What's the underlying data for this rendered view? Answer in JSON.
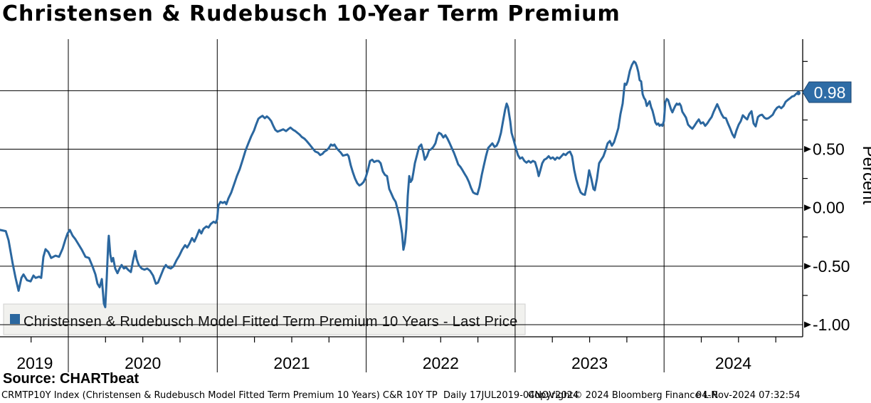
{
  "title": "Christensen & Rudebusch 10-Year Term Premium",
  "source_line": "Source: CHARTbeat",
  "footer": {
    "description": "CRMTP10Y Index (Christensen & Rudebusch Model Fitted Term Premium 10 Years) C&R 10Y TP  Daily 17JUL2019-04NOV2024",
    "copyright": "Copyright© 2024 Bloomberg Finance L.P.",
    "timestamp": "04-Nov-2024 07:32:54"
  },
  "legend": {
    "label": "Christensen & Rudebusch Model Fitted Term Premium 10 Years - Last Price",
    "swatch_color": "#2b679f"
  },
  "last_price_badge": {
    "value": "0.98",
    "fill": "#2e6ca6",
    "border": "#1b4570",
    "text_color": "#ffffff"
  },
  "axes": {
    "y": {
      "label": "Percent",
      "gridline_values": [
        1.0,
        0.5,
        0.0,
        -0.5,
        -1.0
      ],
      "ticks": [
        {
          "v": 0.5,
          "label": "0.50"
        },
        {
          "v": 0.0,
          "label": "0.00"
        },
        {
          "v": -0.5,
          "label": "-0.50"
        },
        {
          "v": -1.0,
          "label": "-1.00"
        }
      ],
      "minor_ticks": [
        1.25,
        0.75,
        0.25,
        -0.25,
        -0.75
      ]
    },
    "x": {
      "labels": [
        "2019",
        "2020",
        "2021",
        "2022",
        "2023",
        "2024"
      ],
      "year_lines": [
        2020,
        2021,
        2022,
        2023,
        2024
      ],
      "minor_step": 0.25
    }
  },
  "chart_data": {
    "type": "line",
    "title": "Christensen & Rudebusch 10-Year Term Premium",
    "xlabel": "",
    "ylabel": "Percent",
    "series_name": "Christensen & Rudebusch Model Fitted Term Premium 10 Years - Last Price",
    "line_color": "#2b679f",
    "x_unit": "decimal_year",
    "x_range": [
      2019.55,
      2024.93
    ],
    "y_range": [
      -1.11,
      1.44
    ],
    "last_value": 0.98,
    "points": [
      [
        2019.541,
        -0.19
      ],
      [
        2019.58,
        -0.2
      ],
      [
        2019.599,
        -0.28
      ],
      [
        2019.627,
        -0.48
      ],
      [
        2019.646,
        -0.6
      ],
      [
        2019.666,
        -0.71
      ],
      [
        2019.685,
        -0.6
      ],
      [
        2019.699,
        -0.57
      ],
      [
        2019.723,
        -0.62
      ],
      [
        2019.747,
        -0.63
      ],
      [
        2019.766,
        -0.58
      ],
      [
        2019.78,
        -0.6
      ],
      [
        2019.804,
        -0.59
      ],
      [
        2019.818,
        -0.6
      ],
      [
        2019.833,
        -0.42
      ],
      [
        2019.847,
        -0.355
      ],
      [
        2019.866,
        -0.38
      ],
      [
        2019.885,
        -0.43
      ],
      [
        2019.914,
        -0.41
      ],
      [
        2019.938,
        -0.42
      ],
      [
        2019.962,
        -0.35
      ],
      [
        2019.981,
        -0.27
      ],
      [
        2019.995,
        -0.22
      ],
      [
        2020.01,
        -0.19
      ],
      [
        2020.029,
        -0.24
      ],
      [
        2020.048,
        -0.27
      ],
      [
        2020.067,
        -0.31
      ],
      [
        2020.091,
        -0.36
      ],
      [
        2020.115,
        -0.42
      ],
      [
        2020.139,
        -0.43
      ],
      [
        2020.162,
        -0.5
      ],
      [
        2020.182,
        -0.57
      ],
      [
        2020.196,
        -0.65
      ],
      [
        2020.21,
        -0.68
      ],
      [
        2020.225,
        -0.61
      ],
      [
        2020.239,
        -0.82
      ],
      [
        2020.248,
        -0.85
      ],
      [
        2020.258,
        -0.6
      ],
      [
        2020.268,
        -0.3
      ],
      [
        2020.272,
        -0.24
      ],
      [
        2020.282,
        -0.4
      ],
      [
        2020.291,
        -0.46
      ],
      [
        2020.301,
        -0.43
      ],
      [
        2020.315,
        -0.52
      ],
      [
        2020.33,
        -0.56
      ],
      [
        2020.344,
        -0.52
      ],
      [
        2020.358,
        -0.49
      ],
      [
        2020.373,
        -0.52
      ],
      [
        2020.387,
        -0.51
      ],
      [
        2020.401,
        -0.53
      ],
      [
        2020.42,
        -0.55
      ],
      [
        2020.435,
        -0.45
      ],
      [
        2020.449,
        -0.37
      ],
      [
        2020.459,
        -0.44
      ],
      [
        2020.473,
        -0.49
      ],
      [
        2020.492,
        -0.52
      ],
      [
        2020.511,
        -0.53
      ],
      [
        2020.53,
        -0.52
      ],
      [
        2020.549,
        -0.54
      ],
      [
        2020.569,
        -0.58
      ],
      [
        2020.588,
        -0.65
      ],
      [
        2020.602,
        -0.64
      ],
      [
        2020.621,
        -0.58
      ],
      [
        2020.64,
        -0.52
      ],
      [
        2020.655,
        -0.49
      ],
      [
        2020.669,
        -0.51
      ],
      [
        2020.688,
        -0.52
      ],
      [
        2020.707,
        -0.5
      ],
      [
        2020.726,
        -0.45
      ],
      [
        2020.745,
        -0.41
      ],
      [
        2020.764,
        -0.36
      ],
      [
        2020.784,
        -0.32
      ],
      [
        2020.798,
        -0.34
      ],
      [
        2020.812,
        -0.31
      ],
      [
        2020.831,
        -0.26
      ],
      [
        2020.846,
        -0.29
      ],
      [
        2020.86,
        -0.25
      ],
      [
        2020.879,
        -0.19
      ],
      [
        2020.893,
        -0.22
      ],
      [
        2020.908,
        -0.18
      ],
      [
        2020.927,
        -0.16
      ],
      [
        2020.941,
        -0.17
      ],
      [
        2020.956,
        -0.14
      ],
      [
        2020.975,
        -0.12
      ],
      [
        2020.989,
        -0.13
      ],
      [
        2020.999,
        -0.1
      ],
      [
        2021.008,
        0.02
      ],
      [
        2021.022,
        0.05
      ],
      [
        2021.037,
        0.04
      ],
      [
        2021.051,
        0.05
      ],
      [
        2021.061,
        0.03
      ],
      [
        2021.075,
        0.08
      ],
      [
        2021.094,
        0.13
      ],
      [
        2021.113,
        0.2
      ],
      [
        2021.132,
        0.27
      ],
      [
        2021.151,
        0.33
      ],
      [
        2021.171,
        0.41
      ],
      [
        2021.19,
        0.49
      ],
      [
        2021.209,
        0.55
      ],
      [
        2021.228,
        0.61
      ],
      [
        2021.247,
        0.66
      ],
      [
        2021.261,
        0.71
      ],
      [
        2021.276,
        0.76
      ],
      [
        2021.29,
        0.775
      ],
      [
        2021.304,
        0.785
      ],
      [
        2021.319,
        0.765
      ],
      [
        2021.333,
        0.78
      ],
      [
        2021.347,
        0.765
      ],
      [
        2021.362,
        0.74
      ],
      [
        2021.376,
        0.7
      ],
      [
        2021.39,
        0.665
      ],
      [
        2021.405,
        0.65
      ],
      [
        2021.424,
        0.66
      ],
      [
        2021.443,
        0.67
      ],
      [
        2021.462,
        0.655
      ],
      [
        2021.476,
        0.67
      ],
      [
        2021.491,
        0.685
      ],
      [
        2021.51,
        0.665
      ],
      [
        2021.524,
        0.655
      ],
      [
        2021.538,
        0.64
      ],
      [
        2021.553,
        0.625
      ],
      [
        2021.567,
        0.605
      ],
      [
        2021.586,
        0.59
      ],
      [
        2021.6,
        0.57
      ],
      [
        2021.62,
        0.54
      ],
      [
        2021.639,
        0.51
      ],
      [
        2021.658,
        0.48
      ],
      [
        2021.677,
        0.47
      ],
      [
        2021.691,
        0.45
      ],
      [
        2021.706,
        0.46
      ],
      [
        2021.72,
        0.48
      ],
      [
        2021.734,
        0.49
      ],
      [
        2021.749,
        0.51
      ],
      [
        2021.763,
        0.54
      ],
      [
        2021.777,
        0.53
      ],
      [
        2021.787,
        0.54
      ],
      [
        2021.801,
        0.51
      ],
      [
        2021.815,
        0.49
      ],
      [
        2021.83,
        0.47
      ],
      [
        2021.844,
        0.445
      ],
      [
        2021.858,
        0.45
      ],
      [
        2021.873,
        0.455
      ],
      [
        2021.882,
        0.44
      ],
      [
        2021.897,
        0.36
      ],
      [
        2021.911,
        0.3
      ],
      [
        2021.925,
        0.25
      ],
      [
        2021.94,
        0.21
      ],
      [
        2021.954,
        0.19
      ],
      [
        2021.968,
        0.2
      ],
      [
        2021.983,
        0.22
      ],
      [
        2021.997,
        0.26
      ],
      [
        2022.011,
        0.32
      ],
      [
        2022.026,
        0.4
      ],
      [
        2022.04,
        0.41
      ],
      [
        2022.054,
        0.39
      ],
      [
        2022.069,
        0.4
      ],
      [
        2022.083,
        0.4
      ],
      [
        2022.097,
        0.38
      ],
      [
        2022.112,
        0.31
      ],
      [
        2022.126,
        0.28
      ],
      [
        2022.14,
        0.27
      ],
      [
        2022.155,
        0.16
      ],
      [
        2022.169,
        0.12
      ],
      [
        2022.183,
        0.08
      ],
      [
        2022.198,
        0.05
      ],
      [
        2022.212,
        -0.02
      ],
      [
        2022.226,
        -0.1
      ],
      [
        2022.241,
        -0.22
      ],
      [
        2022.25,
        -0.36
      ],
      [
        2022.26,
        -0.3
      ],
      [
        2022.269,
        -0.18
      ],
      [
        2022.279,
        0.1
      ],
      [
        2022.289,
        0.27
      ],
      [
        2022.298,
        0.22
      ],
      [
        2022.308,
        0.24
      ],
      [
        2022.317,
        0.3
      ],
      [
        2022.327,
        0.38
      ],
      [
        2022.341,
        0.45
      ],
      [
        2022.355,
        0.52
      ],
      [
        2022.37,
        0.54
      ],
      [
        2022.384,
        0.47
      ],
      [
        2022.393,
        0.41
      ],
      [
        2022.408,
        0.44
      ],
      [
        2022.422,
        0.49
      ],
      [
        2022.436,
        0.5
      ],
      [
        2022.451,
        0.52
      ],
      [
        2022.465,
        0.55
      ],
      [
        2022.479,
        0.62
      ],
      [
        2022.489,
        0.64
      ],
      [
        2022.503,
        0.63
      ],
      [
        2022.518,
        0.6
      ],
      [
        2022.532,
        0.62
      ],
      [
        2022.546,
        0.59
      ],
      [
        2022.561,
        0.55
      ],
      [
        2022.575,
        0.51
      ],
      [
        2022.589,
        0.47
      ],
      [
        2022.604,
        0.42
      ],
      [
        2022.618,
        0.37
      ],
      [
        2022.632,
        0.35
      ],
      [
        2022.647,
        0.32
      ],
      [
        2022.661,
        0.29
      ],
      [
        2022.675,
        0.26
      ],
      [
        2022.69,
        0.22
      ],
      [
        2022.704,
        0.17
      ],
      [
        2022.718,
        0.13
      ],
      [
        2022.733,
        0.12
      ],
      [
        2022.747,
        0.115
      ],
      [
        2022.761,
        0.18
      ],
      [
        2022.776,
        0.28
      ],
      [
        2022.79,
        0.36
      ],
      [
        2022.804,
        0.44
      ],
      [
        2022.819,
        0.51
      ],
      [
        2022.833,
        0.53
      ],
      [
        2022.847,
        0.55
      ],
      [
        2022.862,
        0.52
      ],
      [
        2022.876,
        0.53
      ],
      [
        2022.89,
        0.57
      ],
      [
        2022.905,
        0.64
      ],
      [
        2022.919,
        0.74
      ],
      [
        2022.933,
        0.84
      ],
      [
        2022.943,
        0.89
      ],
      [
        2022.952,
        0.86
      ],
      [
        2022.967,
        0.74
      ],
      [
        2022.976,
        0.64
      ],
      [
        2022.99,
        0.58
      ],
      [
        2023.005,
        0.51
      ],
      [
        2023.019,
        0.45
      ],
      [
        2023.033,
        0.42
      ],
      [
        2023.048,
        0.43
      ],
      [
        2023.062,
        0.4
      ],
      [
        2023.076,
        0.385
      ],
      [
        2023.091,
        0.4
      ],
      [
        2023.105,
        0.385
      ],
      [
        2023.119,
        0.4
      ],
      [
        2023.134,
        0.39
      ],
      [
        2023.148,
        0.33
      ],
      [
        2023.158,
        0.27
      ],
      [
        2023.167,
        0.31
      ],
      [
        2023.182,
        0.38
      ],
      [
        2023.196,
        0.41
      ],
      [
        2023.21,
        0.42
      ],
      [
        2023.225,
        0.44
      ],
      [
        2023.239,
        0.42
      ],
      [
        2023.253,
        0.43
      ],
      [
        2023.268,
        0.41
      ],
      [
        2023.282,
        0.43
      ],
      [
        2023.296,
        0.42
      ],
      [
        2023.311,
        0.44
      ],
      [
        2023.325,
        0.46
      ],
      [
        2023.339,
        0.45
      ],
      [
        2023.354,
        0.47
      ],
      [
        2023.368,
        0.48
      ],
      [
        2023.382,
        0.44
      ],
      [
        2023.397,
        0.32
      ],
      [
        2023.411,
        0.24
      ],
      [
        2023.425,
        0.18
      ],
      [
        2023.44,
        0.13
      ],
      [
        2023.454,
        0.115
      ],
      [
        2023.468,
        0.11
      ],
      [
        2023.483,
        0.2
      ],
      [
        2023.497,
        0.32
      ],
      [
        2023.511,
        0.25
      ],
      [
        2023.526,
        0.16
      ],
      [
        2023.535,
        0.15
      ],
      [
        2023.55,
        0.25
      ],
      [
        2023.564,
        0.38
      ],
      [
        2023.578,
        0.41
      ],
      [
        2023.593,
        0.44
      ],
      [
        2023.607,
        0.49
      ],
      [
        2023.621,
        0.55
      ],
      [
        2023.636,
        0.57
      ],
      [
        2023.65,
        0.53
      ],
      [
        2023.664,
        0.56
      ],
      [
        2023.679,
        0.62
      ],
      [
        2023.693,
        0.68
      ],
      [
        2023.707,
        0.8
      ],
      [
        2023.722,
        0.89
      ],
      [
        2023.736,
        1.06
      ],
      [
        2023.746,
        1.05
      ],
      [
        2023.755,
        1.08
      ],
      [
        2023.77,
        1.17
      ],
      [
        2023.784,
        1.22
      ],
      [
        2023.798,
        1.25
      ],
      [
        2023.808,
        1.24
      ],
      [
        2023.817,
        1.21
      ],
      [
        2023.827,
        1.16
      ],
      [
        2023.836,
        1.09
      ],
      [
        2023.846,
        1.08
      ],
      [
        2023.856,
        0.97
      ],
      [
        2023.865,
        0.94
      ],
      [
        2023.875,
        0.92
      ],
      [
        2023.884,
        0.87
      ],
      [
        2023.894,
        0.89
      ],
      [
        2023.903,
        0.91
      ],
      [
        2023.913,
        0.86
      ],
      [
        2023.922,
        0.83
      ],
      [
        2023.932,
        0.78
      ],
      [
        2023.941,
        0.73
      ],
      [
        2023.951,
        0.71
      ],
      [
        2023.961,
        0.72
      ],
      [
        2023.97,
        0.7
      ],
      [
        2023.98,
        0.71
      ],
      [
        2023.989,
        0.7
      ],
      [
        2023.999,
        0.74
      ],
      [
        2024.008,
        0.9
      ],
      [
        2024.018,
        0.93
      ],
      [
        2024.027,
        0.92
      ],
      [
        2024.037,
        0.88
      ],
      [
        2024.047,
        0.84
      ],
      [
        2024.056,
        0.815
      ],
      [
        2024.066,
        0.845
      ],
      [
        2024.075,
        0.87
      ],
      [
        2024.085,
        0.89
      ],
      [
        2024.094,
        0.88
      ],
      [
        2024.104,
        0.89
      ],
      [
        2024.113,
        0.87
      ],
      [
        2024.123,
        0.82
      ],
      [
        2024.133,
        0.8
      ],
      [
        2024.147,
        0.77
      ],
      [
        2024.161,
        0.71
      ],
      [
        2024.176,
        0.69
      ],
      [
        2024.19,
        0.675
      ],
      [
        2024.204,
        0.7
      ],
      [
        2024.219,
        0.73
      ],
      [
        2024.233,
        0.755
      ],
      [
        2024.247,
        0.72
      ],
      [
        2024.262,
        0.73
      ],
      [
        2024.276,
        0.7
      ],
      [
        2024.29,
        0.72
      ],
      [
        2024.305,
        0.75
      ],
      [
        2024.319,
        0.775
      ],
      [
        2024.333,
        0.82
      ],
      [
        2024.348,
        0.86
      ],
      [
        2024.357,
        0.885
      ],
      [
        2024.372,
        0.84
      ],
      [
        2024.386,
        0.8
      ],
      [
        2024.4,
        0.77
      ],
      [
        2024.415,
        0.765
      ],
      [
        2024.429,
        0.72
      ],
      [
        2024.443,
        0.68
      ],
      [
        2024.458,
        0.63
      ],
      [
        2024.472,
        0.6
      ],
      [
        2024.486,
        0.66
      ],
      [
        2024.501,
        0.71
      ],
      [
        2024.515,
        0.74
      ],
      [
        2024.529,
        0.79
      ],
      [
        2024.544,
        0.77
      ],
      [
        2024.558,
        0.755
      ],
      [
        2024.572,
        0.8
      ],
      [
        2024.587,
        0.825
      ],
      [
        2024.601,
        0.72
      ],
      [
        2024.615,
        0.695
      ],
      [
        2024.63,
        0.775
      ],
      [
        2024.644,
        0.79
      ],
      [
        2024.658,
        0.795
      ],
      [
        2024.673,
        0.77
      ],
      [
        2024.687,
        0.76
      ],
      [
        2024.701,
        0.765
      ],
      [
        2024.716,
        0.78
      ],
      [
        2024.73,
        0.795
      ],
      [
        2024.744,
        0.83
      ],
      [
        2024.759,
        0.855
      ],
      [
        2024.773,
        0.865
      ],
      [
        2024.787,
        0.85
      ],
      [
        2024.802,
        0.87
      ],
      [
        2024.816,
        0.905
      ],
      [
        2024.83,
        0.92
      ],
      [
        2024.845,
        0.935
      ],
      [
        2024.859,
        0.95
      ],
      [
        2024.873,
        0.955
      ],
      [
        2024.888,
        0.975
      ],
      [
        2024.902,
        0.98
      ]
    ]
  }
}
